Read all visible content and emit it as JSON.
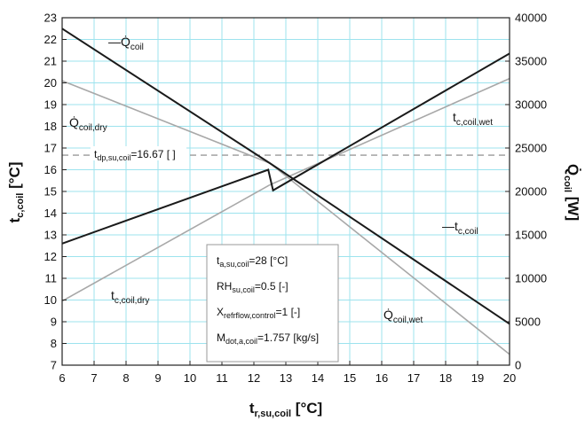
{
  "chart_data": {
    "type": "line",
    "title": "",
    "xlabel": "t_r,su,coil [°C]",
    "ylabel_left": "t_c,coil [°C]",
    "ylabel_right": "Q̇_coil [W]",
    "xlim": [
      6,
      20
    ],
    "ylim_left": [
      7,
      23
    ],
    "ylim_right": [
      0,
      40000
    ],
    "x_ticks": [
      6,
      7,
      8,
      9,
      10,
      11,
      12,
      13,
      14,
      15,
      16,
      17,
      18,
      19,
      20
    ],
    "y_left_ticks": [
      7,
      8,
      9,
      10,
      11,
      12,
      13,
      14,
      15,
      16,
      17,
      18,
      19,
      20,
      21,
      22,
      23
    ],
    "y_right_ticks": [
      0,
      5000,
      10000,
      15000,
      20000,
      25000,
      30000,
      35000,
      40000
    ],
    "grid": true,
    "colors": {
      "grid": "#9de3ee",
      "dark": "#1a1a1a",
      "light": "#a8a8a8",
      "dew": "#9a9a9a"
    },
    "series": [
      {
        "name": "Q̇_coil",
        "axis": "right",
        "color": "dark",
        "x": [
          6,
          12.5,
          20
        ],
        "y": [
          38750,
          23250,
          4750
        ]
      },
      {
        "name": "t_c,coil",
        "axis": "left",
        "color": "dark",
        "x": [
          6,
          12.45,
          12.6,
          20
        ],
        "y": [
          12.6,
          16.0,
          15.05,
          21.35
        ]
      },
      {
        "name": "Q̇_coil,dry",
        "axis": "right",
        "color": "light",
        "x": [
          6,
          12.5
        ],
        "y": [
          32750,
          23250
        ]
      },
      {
        "name": "Q̇_coil,wet",
        "axis": "right",
        "color": "light",
        "x": [
          12.5,
          20
        ],
        "y": [
          23250,
          1250
        ]
      },
      {
        "name": "t_c,coil,dry",
        "axis": "left",
        "color": "light",
        "x": [
          6,
          12.5
        ],
        "y": [
          9.95,
          15.3
        ]
      },
      {
        "name": "t_c,coil,wet",
        "axis": "left",
        "color": "light",
        "x": [
          12.5,
          20
        ],
        "y": [
          15.3,
          20.2
        ]
      }
    ],
    "reference_line": {
      "label": "t_dp,su,coil=16.67 [ ]",
      "axis": "left",
      "y": 16.67,
      "style": "dashed"
    },
    "annotations": {
      "q_coil": "—Q̇coil",
      "q_coil_dry": "Q̇coil,dry",
      "t_coil_wet": "tc,coil,wet",
      "t_coil": "—tc,coil",
      "t_coil_dry": "tc,coil,dry",
      "q_coil_wet": "Q̇coil,wet"
    },
    "parameters": [
      "ta,su,coil=28 [°C]",
      "RHsu,coil=0.5 [-]",
      "Xrefrflow,control=1 [-]",
      "Mdot,a,coil=1.757 [kg/s]"
    ]
  }
}
